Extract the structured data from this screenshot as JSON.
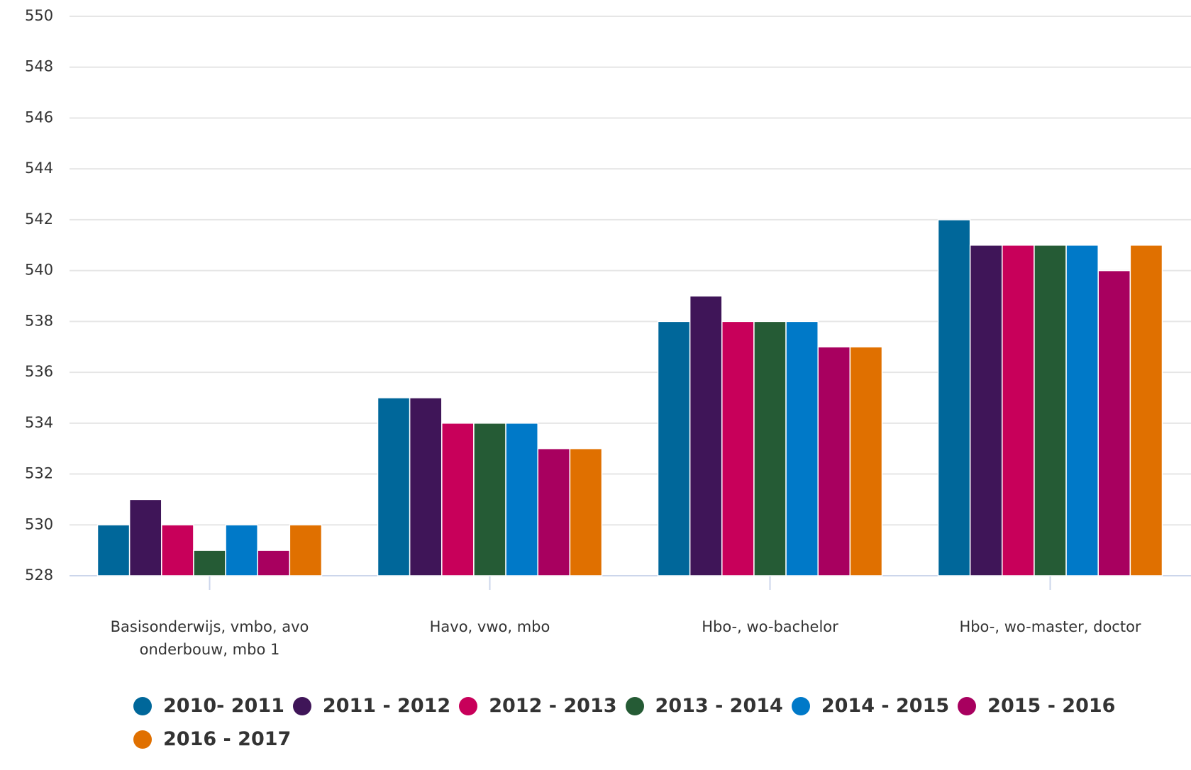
{
  "chart_data": {
    "type": "bar",
    "categories": [
      "Basisonderwijs, vmbo, avo onderbouw, mbo 1",
      "Havo, vwo, mbo",
      "Hbo-, wo-bachelor",
      "Hbo-, wo-master, doctor"
    ],
    "series": [
      {
        "name": "2010- 2011",
        "color": "#00679a",
        "values": [
          530,
          535,
          538,
          542
        ]
      },
      {
        "name": "2011 - 2012",
        "color": "#3f1558",
        "values": [
          531,
          535,
          539,
          541
        ]
      },
      {
        "name": "2012 - 2013",
        "color": "#c8005a",
        "values": [
          530,
          534,
          538,
          541
        ]
      },
      {
        "name": "2013 - 2014",
        "color": "#255b35",
        "values": [
          529,
          534,
          538,
          541
        ]
      },
      {
        "name": "2014 - 2015",
        "color": "#0079c8",
        "values": [
          530,
          534,
          538,
          541
        ]
      },
      {
        "name": "2015 - 2016",
        "color": "#a8005f",
        "values": [
          529,
          533,
          537,
          540
        ]
      },
      {
        "name": "2016 - 2017",
        "color": "#e07000",
        "values": [
          530,
          533,
          537,
          541
        ]
      }
    ],
    "ylim": [
      528,
      550
    ],
    "yticks": [
      528,
      530,
      532,
      534,
      536,
      538,
      540,
      542,
      544,
      546,
      548,
      550
    ],
    "grid": true
  }
}
